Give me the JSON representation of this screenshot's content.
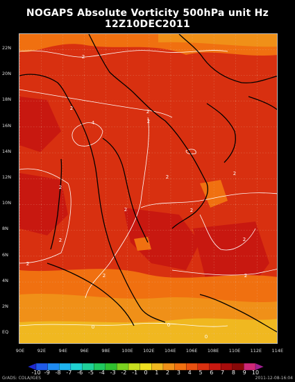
{
  "title": "NOGAPS Absolute Vorticity 500hPa unit Hz",
  "subtitle": "12Z10DEC2011",
  "lat_labels": [
    "22N",
    "20N",
    "18N",
    "16N",
    "14N",
    "12N",
    "10N",
    "8N",
    "6N",
    "4N",
    "2N",
    "EQ"
  ],
  "lon_labels": [
    "90E",
    "92E",
    "94E",
    "96E",
    "98E",
    "100E",
    "102E",
    "104E",
    "106E",
    "108E",
    "110E",
    "112E",
    "114E"
  ],
  "colorbar": {
    "labels": [
      "-10",
      "-9",
      "-8",
      "-7",
      "-6",
      "-5",
      "-4",
      "-3",
      "-2",
      "-1",
      "0",
      "1",
      "2",
      "3",
      "4",
      "5",
      "6",
      "7",
      "8",
      "9",
      "10"
    ],
    "colors": [
      "#1f2ad0",
      "#1f5ae8",
      "#1f8af0",
      "#1fb4f0",
      "#20d0d0",
      "#20d09a",
      "#20c860",
      "#30c030",
      "#7ad020",
      "#c8e020",
      "#f0e020",
      "#f0b820",
      "#f09018",
      "#f07010",
      "#e85010",
      "#d83010",
      "#c81810",
      "#a80c0c",
      "#880808",
      "#d02878",
      "#a02090"
    ]
  },
  "contour_labels": [
    "2",
    "2",
    "2",
    "4",
    "2",
    "2",
    "2",
    "2",
    "2",
    "2",
    "2",
    "2",
    "2",
    "2",
    "2",
    "0",
    "0",
    "0"
  ],
  "credit": "GrADS: COLA/IGES",
  "timestamp": "2011-12-08-16:04"
}
